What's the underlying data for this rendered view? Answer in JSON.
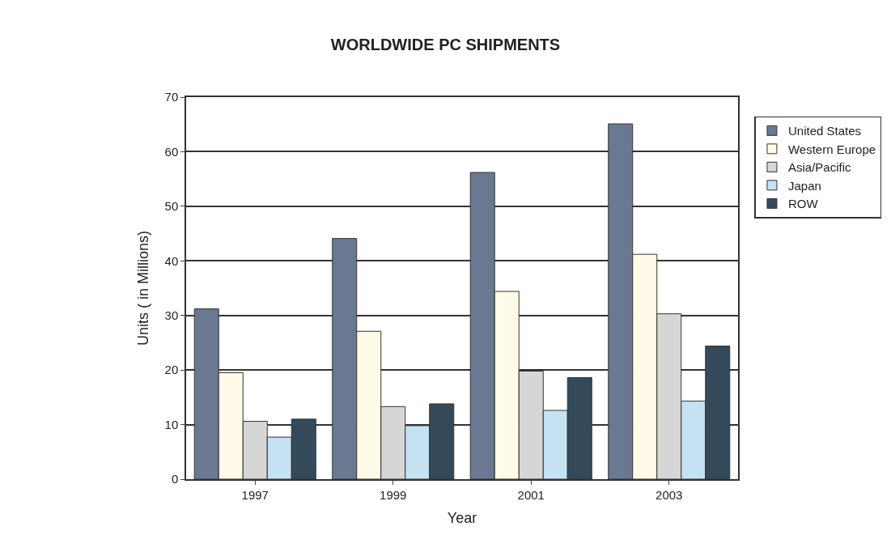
{
  "chart_data": {
    "type": "bar",
    "title": "WORLDWIDE PC SHIPMENTS",
    "xlabel": "Year",
    "ylabel": "Units ( in Millions)",
    "categories": [
      "1997",
      "1999",
      "2001",
      "2003"
    ],
    "series": [
      {
        "name": "United States",
        "color": "#6b7891",
        "values": [
          31.2,
          44.1,
          56.2,
          65.1
        ]
      },
      {
        "name": "Western Europe",
        "color": "#fffbe8",
        "values": [
          19.5,
          27.1,
          34.4,
          41.2
        ]
      },
      {
        "name": "Asia/Pacific",
        "color": "#d6d6d6",
        "values": [
          10.6,
          13.3,
          19.8,
          30.3
        ]
      },
      {
        "name": "Japan",
        "color": "#c5e2f2",
        "values": [
          7.7,
          9.8,
          12.6,
          14.3
        ]
      },
      {
        "name": "ROW",
        "color": "#34495a",
        "values": [
          11.0,
          13.8,
          18.6,
          24.4
        ]
      }
    ],
    "ylim": [
      0,
      70
    ],
    "yticks": [
      0,
      10,
      20,
      30,
      40,
      50,
      60,
      70
    ],
    "grid": "y",
    "legend": "right"
  }
}
